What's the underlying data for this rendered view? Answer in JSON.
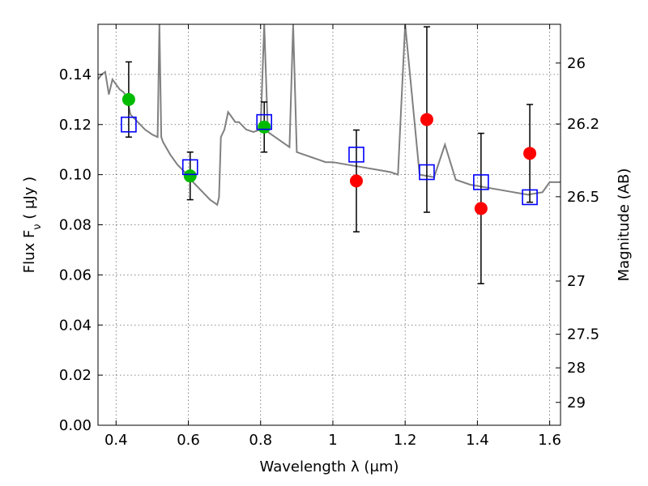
{
  "chart_data": {
    "type": "scatter",
    "xlabel": "Wavelength  λ (μm)",
    "ylabel": "Flux  F_ν  ( μJy )",
    "y2label": "Magnitude (AB)",
    "xlim": [
      0.35,
      1.63
    ],
    "ylim": [
      0.0,
      0.16
    ],
    "grid": true,
    "x_ticks": [
      "0.4",
      "0.6",
      "0.8",
      "1",
      "1.2",
      "1.4",
      "1.6"
    ],
    "y_ticks": [
      "0.00",
      "0.02",
      "0.04",
      "0.06",
      "0.08",
      "0.10",
      "0.12",
      "0.14"
    ],
    "magnitude_ticks": [
      "26",
      "26.2",
      "26.5",
      "27",
      "27.5",
      "28",
      "29"
    ],
    "colors": {
      "model": "#808080",
      "model_photometry": "#0000ff",
      "detected": "#00bb00",
      "observed_other": "#ff0000",
      "errorbar": "#000000"
    },
    "series": [
      {
        "role": "model_spectrum",
        "x": [
          0.35,
          0.36,
          0.37,
          0.38,
          0.39,
          0.4,
          0.41,
          0.42,
          0.43,
          0.44,
          0.46,
          0.48,
          0.5,
          0.515,
          0.52,
          0.525,
          0.53,
          0.55,
          0.57,
          0.59,
          0.6,
          0.62,
          0.64,
          0.66,
          0.67,
          0.68,
          0.685,
          0.69,
          0.7,
          0.71,
          0.72,
          0.73,
          0.74,
          0.76,
          0.78,
          0.8,
          0.81,
          0.82,
          0.84,
          0.86,
          0.88,
          0.89,
          0.9,
          0.92,
          0.94,
          0.96,
          0.98,
          1.0,
          1.04,
          1.08,
          1.12,
          1.16,
          1.18,
          1.2,
          1.24,
          1.28,
          1.31,
          1.34,
          1.38,
          1.42,
          1.46,
          1.5,
          1.54,
          1.58,
          1.6,
          1.63
        ],
        "y": [
          0.138,
          0.14,
          0.141,
          0.132,
          0.138,
          0.136,
          0.134,
          0.133,
          0.131,
          0.124,
          0.121,
          0.118,
          0.116,
          0.115,
          0.16,
          0.115,
          0.113,
          0.108,
          0.104,
          0.101,
          0.099,
          0.096,
          0.093,
          0.09,
          0.089,
          0.088,
          0.091,
          0.115,
          0.118,
          0.125,
          0.123,
          0.121,
          0.121,
          0.118,
          0.117,
          0.118,
          0.16,
          0.117,
          0.115,
          0.113,
          0.111,
          0.16,
          0.109,
          0.108,
          0.107,
          0.106,
          0.105,
          0.105,
          0.104,
          0.103,
          0.102,
          0.101,
          0.1,
          0.16,
          0.1,
          0.099,
          0.112,
          0.098,
          0.096,
          0.095,
          0.094,
          0.093,
          0.092,
          0.093,
          0.097,
          0.097
        ]
      },
      {
        "role": "model_photometry",
        "x": [
          0.435,
          0.605,
          0.81,
          1.065,
          1.26,
          1.41,
          1.545
        ],
        "y": [
          0.12,
          0.103,
          0.121,
          0.108,
          0.101,
          0.097,
          0.091
        ]
      },
      {
        "role": "observed_detected",
        "x": [
          0.435,
          0.605,
          0.81
        ],
        "y": [
          0.13,
          0.0995,
          0.119
        ],
        "yerr": [
          0.015,
          0.0095,
          0.01
        ]
      },
      {
        "role": "observed_other",
        "x": [
          1.065,
          1.26,
          1.41,
          1.545
        ],
        "y": [
          0.0975,
          0.122,
          0.0865,
          0.1085
        ],
        "yerr": [
          0.0203,
          0.037,
          0.03,
          0.0195
        ]
      }
    ]
  }
}
